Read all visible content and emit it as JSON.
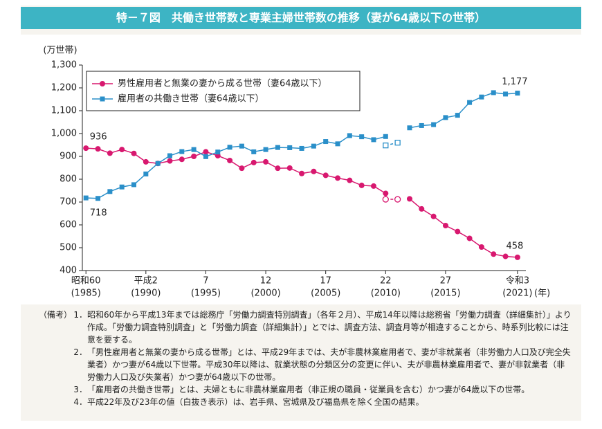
{
  "chart_data": {
    "type": "line",
    "title": "特－７図　共働き世帯数と専業主婦世帯数の推移（妻が64歳以下の世帯）",
    "y_unit": "(万世帯)",
    "x_unit": "(年)",
    "x": [
      1985,
      1986,
      1987,
      1988,
      1989,
      1990,
      1991,
      1992,
      1993,
      1994,
      1995,
      1996,
      1997,
      1998,
      1999,
      2000,
      2001,
      2002,
      2003,
      2004,
      2005,
      2006,
      2007,
      2008,
      2009,
      2010,
      2011,
      2012,
      2013,
      2014,
      2015,
      2016,
      2017,
      2018,
      2019,
      2020,
      2021
    ],
    "series": [
      {
        "name": "男性雇用者と無業の妻から成る世帯（妻64歳以下）",
        "color": "#d8186f",
        "marker": "circle",
        "values": [
          936,
          933,
          914,
          930,
          913,
          876,
          869,
          880,
          887,
          900,
          920,
          903,
          882,
          848,
          873,
          876,
          848,
          849,
          825,
          834,
          817,
          805,
          795,
          773,
          770,
          738,
          null,
          714,
          670,
          637,
          597,
          571,
          541,
          503,
          472,
          462,
          458
        ],
        "hollow_values": [
          null,
          null,
          null,
          null,
          null,
          null,
          null,
          null,
          null,
          null,
          null,
          null,
          null,
          null,
          null,
          null,
          null,
          null,
          null,
          null,
          null,
          null,
          null,
          null,
          null,
          712,
          712,
          null,
          null,
          null,
          null,
          null,
          null,
          null,
          null,
          null,
          null
        ],
        "value_labels": [
          "936",
          null,
          null,
          null,
          null,
          null,
          null,
          null,
          null,
          null,
          null,
          null,
          null,
          null,
          null,
          null,
          null,
          null,
          null,
          null,
          null,
          null,
          null,
          null,
          null,
          null,
          null,
          null,
          null,
          null,
          null,
          null,
          null,
          null,
          null,
          null,
          "458"
        ]
      },
      {
        "name": "雇用者の共働き世帯（妻64歳以下）",
        "color": "#2a8fc9",
        "marker": "square",
        "values": [
          718,
          716,
          746,
          766,
          776,
          823,
          869,
          903,
          921,
          930,
          899,
          919,
          940,
          945,
          920,
          930,
          939,
          938,
          935,
          945,
          965,
          955,
          991,
          986,
          973,
          987,
          null,
          1025,
          1035,
          1039,
          1070,
          1080,
          1136,
          1160,
          1179,
          1173,
          1177
        ],
        "hollow_values": [
          null,
          null,
          null,
          null,
          null,
          null,
          null,
          null,
          null,
          null,
          null,
          null,
          null,
          null,
          null,
          null,
          null,
          null,
          null,
          null,
          null,
          null,
          null,
          null,
          null,
          948,
          960,
          null,
          null,
          null,
          null,
          null,
          null,
          null,
          null,
          null,
          null
        ],
        "value_labels": [
          "718",
          null,
          null,
          null,
          null,
          null,
          null,
          null,
          null,
          null,
          null,
          null,
          null,
          null,
          null,
          null,
          null,
          null,
          null,
          null,
          null,
          null,
          null,
          null,
          null,
          null,
          null,
          null,
          null,
          null,
          null,
          null,
          null,
          null,
          null,
          null,
          "1,177"
        ]
      }
    ],
    "xlim": [
      1984.7,
      2021.7
    ],
    "xticks": [
      {
        "value": 1985,
        "label": "昭和60",
        "label2": "(1985)"
      },
      {
        "value": 1990,
        "label": "平成2",
        "label2": "(1990)"
      },
      {
        "value": 1995,
        "label": "7",
        "label2": "(1995)"
      },
      {
        "value": 2000,
        "label": "12",
        "label2": "(2000)"
      },
      {
        "value": 2005,
        "label": "17",
        "label2": "(2005)"
      },
      {
        "value": 2010,
        "label": "22",
        "label2": "(2010)"
      },
      {
        "value": 2015,
        "label": "27",
        "label2": "(2015)"
      },
      {
        "value": 2021,
        "label": "令和3",
        "label2": "(2021)"
      }
    ],
    "ylim": [
      400,
      1300
    ],
    "yticks": [
      400,
      500,
      600,
      700,
      800,
      900,
      {
        "value": 1000,
        "label": "1,000"
      },
      {
        "value": 1100,
        "label": "1,100"
      },
      {
        "value": 1200,
        "label": "1,200"
      },
      {
        "value": 1300,
        "label": "1,300"
      }
    ],
    "legend": "upper left"
  },
  "notes": {
    "label": "（備考）",
    "items": [
      {
        "number": "1．",
        "text": "昭和60年から平成13年までは総務庁「労働力調査特別調査」（各年２月）、平成14年以降は総務省「労働力調査（詳細集計）」より作成。「労働力調査特別調査」と「労働力調査（詳細集計）」とでは、調査方法、調査月等が相違することから、時系列比較には注意を要する。"
      },
      {
        "number": "2．",
        "text": "「男性雇用者と無業の妻から成る世帯」とは、平成29年までは、夫が非農林業雇用者で、妻が非就業者（非労働力人口及び完全失業者）かつ妻が64歳以下世帯。平成30年以降は、就業状態の分類区分の変更に伴い、夫が非農林業雇用者で、妻が非就業者（非労働力人口及び失業者）かつ妻が64歳以下の世帯。"
      },
      {
        "number": "3．",
        "text": "「雇用者の共働き世帯」とは、夫婦ともに非農林業雇用者（非正規の職員・従業員を含む）かつ妻が64歳以下の世帯。"
      },
      {
        "number": "4．",
        "text": "平成22年及び23年の値（白抜き表示）は、岩手県、宮城県及び福島県を除く全国の結果。"
      }
    ]
  }
}
